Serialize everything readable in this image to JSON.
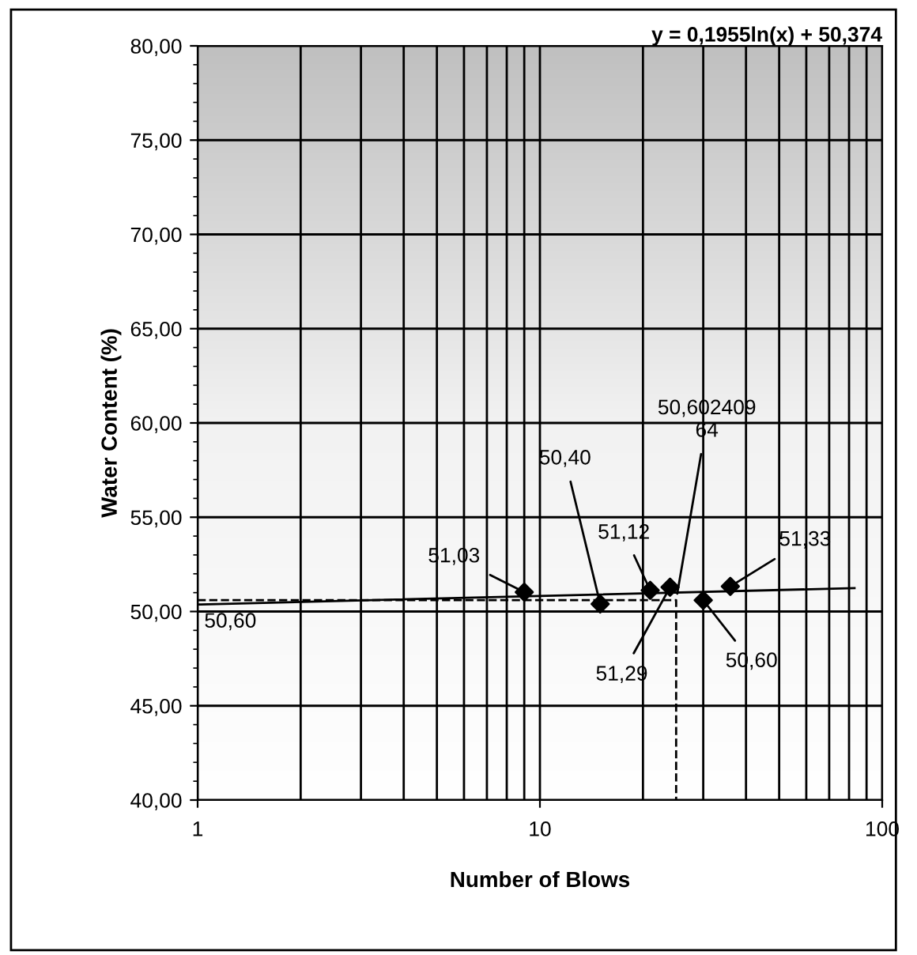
{
  "chart_data": {
    "type": "scatter",
    "xlabel": "Number of Blows",
    "ylabel": "Water Content (%)",
    "log": "x",
    "grid": true,
    "legend": false,
    "xlim": [
      1,
      100
    ],
    "xticks": [
      1,
      10,
      100
    ],
    "ylim": [
      40,
      80
    ],
    "yticks": [
      {
        "value": 40,
        "label": "40,00"
      },
      {
        "value": 45,
        "label": "45,00"
      },
      {
        "value": 50,
        "label": "50,00"
      },
      {
        "value": 55,
        "label": "55,00"
      },
      {
        "value": 60,
        "label": "60,00"
      },
      {
        "value": 65,
        "label": "65,00"
      },
      {
        "value": 70,
        "label": "70,00"
      },
      {
        "value": 75,
        "label": "75,00"
      },
      {
        "value": 80,
        "label": "80,00"
      }
    ],
    "series": [
      {
        "color": "#000000",
        "marker": "diamond",
        "x": [
          9,
          15,
          21,
          24,
          30,
          36
        ],
        "values": [
          51.03,
          50.4,
          51.12,
          51.29,
          50.6,
          51.33
        ],
        "value_labels": [
          "51,03",
          "50,40",
          "51,12",
          "51,29",
          "50,60",
          "51,33"
        ]
      },
      {
        "type": "line",
        "color": "#000000",
        "line_style": "solid",
        "marker": "none",
        "x": [
          1,
          83
        ],
        "values": [
          50.37,
          51.24
        ]
      },
      {
        "type": "line",
        "color": "#000000",
        "line_style": "dashed",
        "marker": "none",
        "x": [
          1,
          25,
          25
        ],
        "values": [
          50.6,
          50.6,
          40
        ],
        "value_labels": [
          "50,60",
          "50,602409\n64",
          null
        ]
      }
    ],
    "annotations": [
      "y = 0,1955ln(x) + 50,374"
    ]
  }
}
